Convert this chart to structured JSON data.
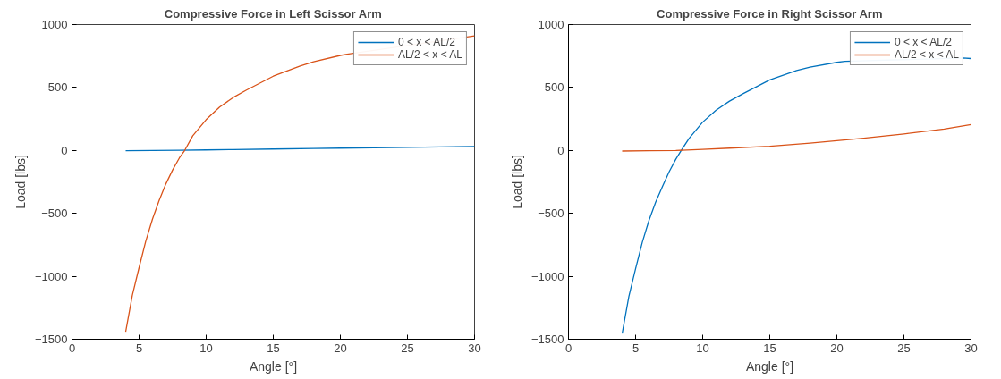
{
  "chart_data": [
    {
      "type": "line",
      "title": "Compressive Force in Left Scissor Arm",
      "xlabel": "Angle [°]",
      "ylabel": "Load [lbs]",
      "xlim": [
        0,
        30
      ],
      "ylim": [
        -1500,
        1000
      ],
      "xticks": [
        0,
        5,
        10,
        15,
        20,
        25,
        30
      ],
      "yticks": [
        -1500,
        -1000,
        -500,
        0,
        500,
        1000
      ],
      "grid": false,
      "legend": "top right",
      "line_style": "solid",
      "marker": "none",
      "series": [
        {
          "name": "0 < x < AL/2",
          "color": "#0072bd",
          "x": [
            4,
            6,
            8,
            10,
            12,
            15,
            18,
            20,
            25,
            30
          ],
          "values": [
            -3,
            -1,
            1,
            4,
            7,
            11,
            15,
            18,
            25,
            32
          ]
        },
        {
          "name": "AL/2 < x < AL",
          "color": "#d95319",
          "x": [
            4,
            4.5,
            5,
            5.5,
            6,
            6.5,
            7,
            7.5,
            8,
            8.4,
            9,
            10,
            11,
            12,
            13,
            15,
            17,
            18,
            20,
            20.5,
            30
          ],
          "values": [
            -1440,
            -1150,
            -930,
            -720,
            -545,
            -395,
            -265,
            -155,
            -60,
            0,
            117,
            245,
            345,
            420,
            480,
            590,
            670,
            705,
            755,
            765,
            910
          ]
        }
      ]
    },
    {
      "type": "line",
      "title": "Compressive Force in Right Scissor Arm",
      "xlabel": "Angle [°]",
      "ylabel": "Load [lbs]",
      "xlim": [
        0,
        30
      ],
      "ylim": [
        -1500,
        1000
      ],
      "xticks": [
        0,
        5,
        10,
        15,
        20,
        25,
        30
      ],
      "yticks": [
        -1500,
        -1000,
        -500,
        0,
        500,
        1000
      ],
      "grid": false,
      "legend": "top right",
      "line_style": "solid",
      "marker": "none",
      "series": [
        {
          "name": "0 < x < AL/2",
          "color": "#0072bd",
          "x": [
            4,
            4.5,
            5,
            5.5,
            6,
            6.5,
            7,
            7.5,
            8,
            8.4,
            9,
            10,
            11,
            12,
            13,
            15,
            17,
            18,
            20,
            20.6,
            29.4,
            30
          ],
          "values": [
            -1455,
            -1160,
            -940,
            -730,
            -555,
            -410,
            -287,
            -170,
            -70,
            0,
            97,
            225,
            320,
            392,
            450,
            560,
            635,
            662,
            700,
            708,
            735,
            730
          ]
        },
        {
          "name": "AL/2 < x < AL",
          "color": "#d95319",
          "x": [
            4,
            6,
            8,
            10,
            12,
            15,
            18,
            20,
            22,
            25,
            28,
            30
          ],
          "values": [
            -5,
            -3,
            0,
            8,
            18,
            33,
            58,
            77,
            97,
            131,
            170,
            205
          ]
        }
      ]
    }
  ]
}
